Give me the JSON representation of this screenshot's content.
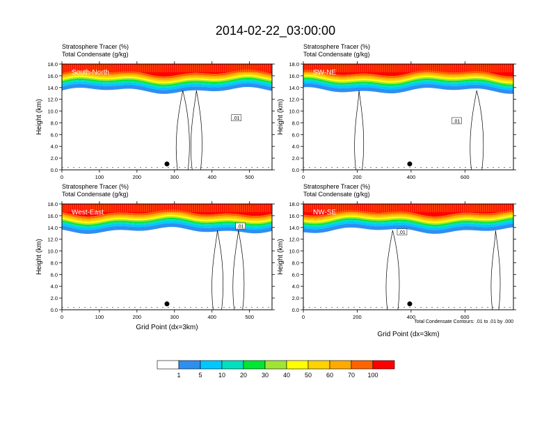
{
  "figure": {
    "title": "2014-02-22_03:00:00",
    "footnote": "Total Condensate Contours: .01 to .01 by .000"
  },
  "colorbar": {
    "colors": [
      "#ffffff",
      "#2f8ff0",
      "#00c8ff",
      "#00e0c0",
      "#00e632",
      "#9ee632",
      "#ffff00",
      "#ffd200",
      "#ffaa00",
      "#ff6400",
      "#ff0000"
    ],
    "labels": [
      "1",
      "5",
      "10",
      "20",
      "30",
      "40",
      "50",
      "60",
      "70",
      "100"
    ]
  },
  "chart_data": [
    {
      "type": "heatmap",
      "title_line1": "Stratosphere Tracer   (%)",
      "title_line2": "Total Condensate   (g/kg)",
      "panel_label": "South-North",
      "ylabel": "Height (km)",
      "xlabel": "",
      "xlim": [
        0,
        560
      ],
      "ylim": [
        0,
        18
      ],
      "x_ticks": [
        "0",
        "100",
        "200",
        "300",
        "400",
        "500"
      ],
      "y_ticks": [
        "0.0",
        "2.0",
        "4.0",
        "6.0",
        "8.0",
        "10.0",
        "12.0",
        "14.0",
        "16.0",
        "18.0"
      ],
      "contour_label": ".01",
      "marker_point": {
        "x": 280,
        "y": 1.0
      }
    },
    {
      "type": "heatmap",
      "title_line1": "Stratosphere Tracer   (%)",
      "title_line2": "Total Condensate   (g/kg)",
      "panel_label": "SW-NE",
      "ylabel": "Height (km)",
      "xlabel": "",
      "xlim": [
        0,
        780
      ],
      "ylim": [
        0,
        18
      ],
      "x_ticks": [
        "0",
        "200",
        "400",
        "600"
      ],
      "y_ticks": [
        "0.0",
        "2.0",
        "4.0",
        "6.0",
        "8.0",
        "10.0",
        "12.0",
        "14.0",
        "16.0",
        "18.0"
      ],
      "contour_label": ".01",
      "marker_point": {
        "x": 395,
        "y": 1.0
      }
    },
    {
      "type": "heatmap",
      "title_line1": "Stratosphere Tracer   (%)",
      "title_line2": "Total Condensate   (g/kg)",
      "panel_label": "West-East",
      "ylabel": "Height (km)",
      "xlabel": "Grid Point (dx=3km)",
      "xlim": [
        0,
        560
      ],
      "ylim": [
        0,
        18
      ],
      "x_ticks": [
        "0",
        "100",
        "200",
        "300",
        "400",
        "500"
      ],
      "y_ticks": [
        "0.0",
        "2.0",
        "4.0",
        "6.0",
        "8.0",
        "10.0",
        "12.0",
        "14.0",
        "16.0",
        "18.0"
      ],
      "contour_label": ".01",
      "marker_point": {
        "x": 280,
        "y": 1.0
      }
    },
    {
      "type": "heatmap",
      "title_line1": "Stratosphere Tracer   (%)",
      "title_line2": "Total Condensate   (g/kg)",
      "panel_label": "NW-SE",
      "ylabel": "Height (km)",
      "xlabel": "Grid Point (dx=3km)",
      "xlim": [
        0,
        780
      ],
      "ylim": [
        0,
        18
      ],
      "x_ticks": [
        "0",
        "200",
        "400",
        "600"
      ],
      "y_ticks": [
        "0.0",
        "2.0",
        "4.0",
        "6.0",
        "8.0",
        "10.0",
        "12.0",
        "14.0",
        "16.0",
        "18.0"
      ],
      "contour_label": ".01",
      "marker_point": {
        "x": 395,
        "y": 1.0
      }
    }
  ]
}
